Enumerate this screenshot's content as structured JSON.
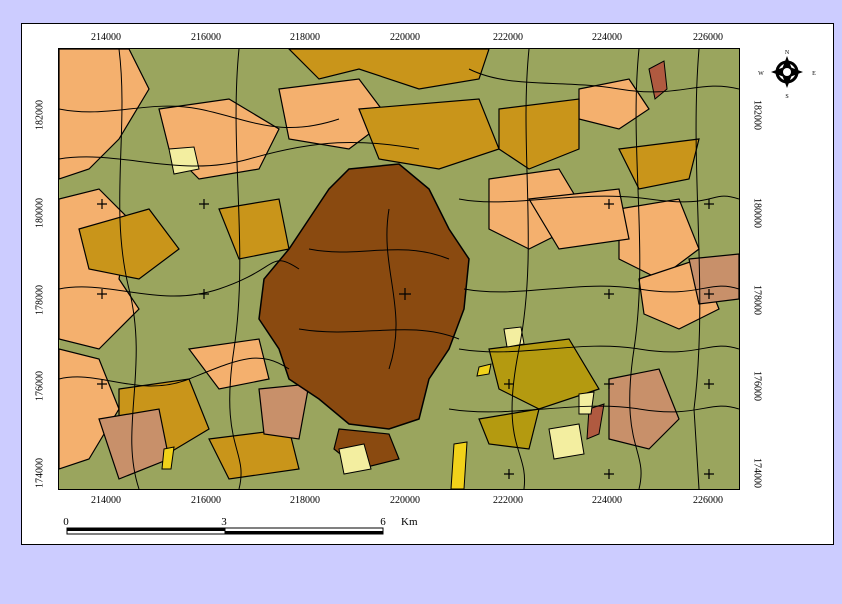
{
  "map": {
    "x_ticks": [
      "214000",
      "216000",
      "218000",
      "220000",
      "222000",
      "224000",
      "226000"
    ],
    "y_ticks": [
      "182000",
      "180000",
      "178000",
      "176000",
      "174000"
    ],
    "scale": {
      "labels": [
        "0",
        "3",
        "6"
      ],
      "unit": "Km"
    },
    "compass": {
      "n": "N",
      "s": "S",
      "e": "E",
      "w": "W"
    },
    "colors": {
      "background": "#ccccff",
      "urban": "#8a4a10",
      "vegetation": "#9aa55e",
      "peach": "#f4b06e",
      "ochre": "#c9951a",
      "olive": "#b49a10",
      "light_yellow": "#f3eea0",
      "tan": "#c8906a",
      "brown_red": "#b05a40",
      "yellow": "#f1d21a"
    }
  }
}
